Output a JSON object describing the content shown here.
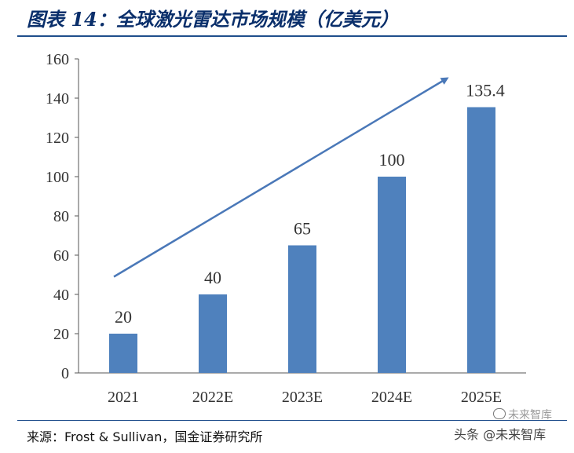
{
  "title": "图表 14：全球激光雷达市场规模（亿美元）",
  "source": "来源：Frost & Sullivan，国金证券研究所",
  "watermark": {
    "line1": "未来智库",
    "line2": "头条 @未来智库"
  },
  "colors": {
    "bar": "#4f81bd",
    "arrow": "#4a78b8",
    "title": "#0a2f6b",
    "rule": "#1f4e8c"
  },
  "chart_data": {
    "type": "bar",
    "categories": [
      "2021",
      "2022E",
      "2023E",
      "2024E",
      "2025E"
    ],
    "values": [
      20,
      40,
      65,
      100,
      135.4
    ],
    "value_labels": [
      "20",
      "40",
      "65",
      "100",
      "135.4"
    ],
    "ylim": [
      0,
      160
    ],
    "yticks": [
      "0",
      "20",
      "40",
      "60",
      "80",
      "100",
      "120",
      "140",
      "160"
    ],
    "xlabel": "",
    "ylabel": "",
    "grid": false,
    "legend": "none",
    "annotation": "trend-arrow"
  }
}
